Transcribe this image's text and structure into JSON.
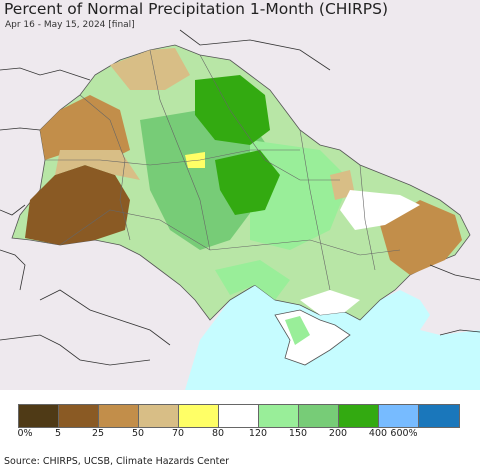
{
  "title": "Percent of Normal Precipitation 1-Month (CHIRPS)",
  "subtitle": "Apr 16 - May 15, 2024 [final]",
  "legend": {
    "colors": [
      "#4f3a16",
      "#8a5a24",
      "#c28e4a",
      "#d8be86",
      "#ffff66",
      "#ffffff",
      "#99ee99",
      "#77cc77",
      "#33aa11",
      "#77bbff",
      "#1a77bb"
    ],
    "ticks": [
      "0%",
      "5",
      "25",
      "50",
      "70",
      "80",
      "120",
      "150",
      "200",
      "400",
      "600%"
    ]
  },
  "source": "Source: CHIRPS, UCSB, Climate Hazards Center"
}
